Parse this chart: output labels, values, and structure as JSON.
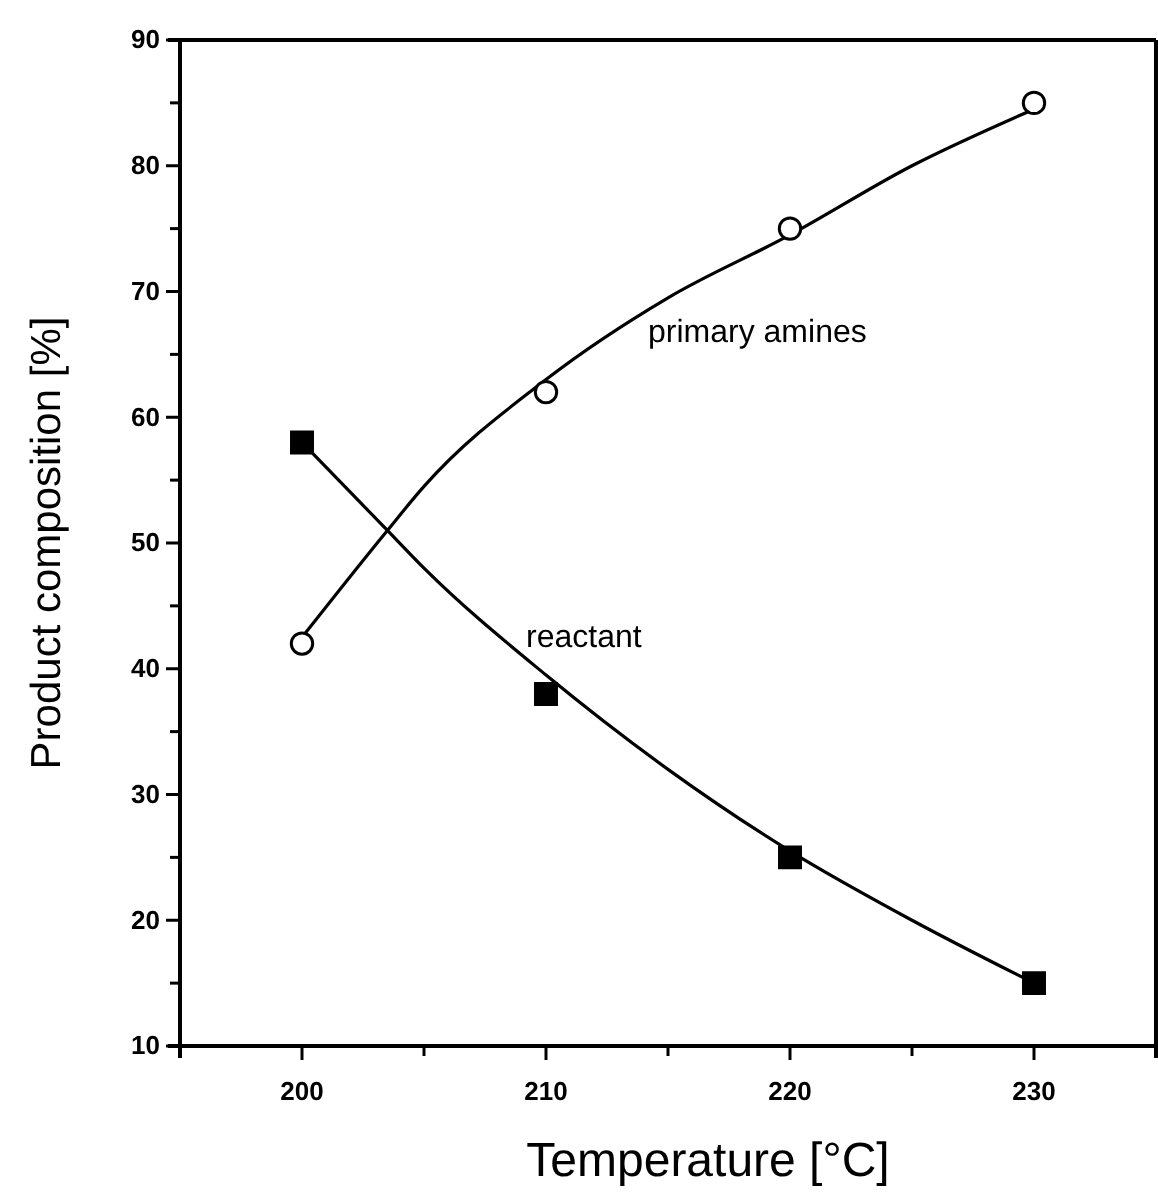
{
  "chart_data": {
    "type": "scatter",
    "xlabel": "Temperature [°C]",
    "ylabel": "Product composition [%]",
    "xlim": [
      195,
      235
    ],
    "ylim": [
      10,
      90
    ],
    "xticks": [
      {
        "value": 195,
        "label": null
      },
      200,
      {
        "value": 205,
        "label": null
      },
      210,
      {
        "value": 215,
        "label": null
      },
      220,
      {
        "value": 225,
        "label": null
      },
      230,
      {
        "value": 235,
        "label": null
      }
    ],
    "yticks": [
      10,
      {
        "value": 15,
        "label": null
      },
      20,
      {
        "value": 25,
        "label": null
      },
      30,
      {
        "value": 35,
        "label": null
      },
      40,
      {
        "value": 45,
        "label": null
      },
      50,
      {
        "value": 55,
        "label": null
      },
      60,
      {
        "value": 65,
        "label": null
      },
      70,
      {
        "value": 75,
        "label": null
      },
      80,
      {
        "value": 85,
        "label": null
      },
      90
    ],
    "grid": false,
    "series": [
      {
        "marker": "circle",
        "color": "#000000",
        "x": [
          200,
          210,
          220,
          230
        ],
        "values": [
          42,
          62,
          75,
          85
        ]
      },
      {
        "marker": "square",
        "color": "#000000",
        "x": [
          200,
          210,
          220,
          230
        ],
        "values": [
          58,
          38,
          25,
          15
        ]
      },
      {
        "type": "line",
        "name": "primary amines",
        "color": "#000000",
        "marker": "none",
        "line_style": "solid",
        "x": [
          200,
          203.5,
          205,
          210,
          215,
          220,
          225,
          230
        ],
        "values": [
          42.5,
          51,
          54.5,
          63,
          69.5,
          74.5,
          80,
          84.5
        ]
      },
      {
        "type": "line",
        "name": "reactant",
        "color": "#000000",
        "marker": "none",
        "line_style": "solid",
        "x": [
          200,
          203.5,
          205,
          210,
          215,
          220,
          225,
          230
        ],
        "values": [
          58,
          51,
          48,
          39.5,
          32,
          25.5,
          20,
          15
        ]
      }
    ]
  }
}
